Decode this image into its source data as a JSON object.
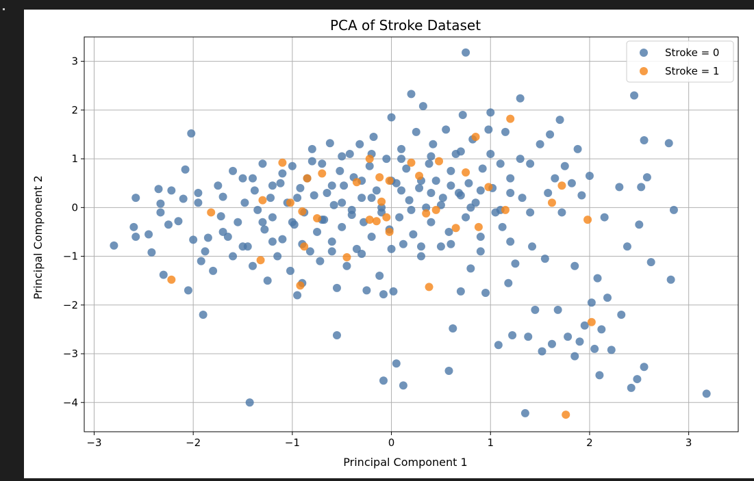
{
  "chart_data": {
    "type": "scatter",
    "title": "PCA of Stroke Dataset",
    "xlabel": "Principal Component 1",
    "ylabel": "Principal Component 2",
    "xlim": [
      -3.1,
      3.5
    ],
    "ylim": [
      -4.6,
      3.5
    ],
    "xticks": [
      -3,
      -2,
      -1,
      0,
      1,
      2,
      3
    ],
    "yticks": [
      3,
      2,
      1,
      0,
      -1,
      -2,
      -3,
      -4
    ],
    "xtick_labels": [
      "−3",
      "−2",
      "−1",
      "0",
      "1",
      "2",
      "3"
    ],
    "ytick_labels": [
      "3",
      "2",
      "1",
      "0",
      "−1",
      "−2",
      "−3",
      "−4"
    ],
    "grid": true,
    "legend": "top-right",
    "series": [
      {
        "name": "Stroke = 0",
        "color": "#4c78a8",
        "points": [
          [
            -2.8,
            -0.78
          ],
          [
            -2.6,
            -0.4
          ],
          [
            -2.58,
            -0.6
          ],
          [
            -2.58,
            0.2
          ],
          [
            -2.45,
            -0.55
          ],
          [
            -2.42,
            -0.92
          ],
          [
            -2.35,
            0.38
          ],
          [
            -2.33,
            -0.1
          ],
          [
            -2.33,
            0.08
          ],
          [
            -2.3,
            -1.38
          ],
          [
            -2.22,
            0.35
          ],
          [
            -2.25,
            -0.35
          ],
          [
            -2.15,
            -0.28
          ],
          [
            -2.1,
            0.18
          ],
          [
            -2.02,
            1.52
          ],
          [
            -2.08,
            0.78
          ],
          [
            -2.05,
            -1.7
          ],
          [
            -2.0,
            -0.66
          ],
          [
            -1.95,
            0.1
          ],
          [
            -1.92,
            -1.1
          ],
          [
            -1.9,
            -2.2
          ],
          [
            -1.88,
            -0.9
          ],
          [
            -1.85,
            -0.62
          ],
          [
            -1.8,
            -1.3
          ],
          [
            -1.75,
            0.45
          ],
          [
            -1.72,
            -0.18
          ],
          [
            -1.7,
            0.22
          ],
          [
            -1.65,
            -0.6
          ],
          [
            -1.6,
            -1.0
          ],
          [
            -1.55,
            -0.3
          ],
          [
            -1.5,
            0.6
          ],
          [
            -1.48,
            0.1
          ],
          [
            -1.45,
            -0.8
          ],
          [
            -1.4,
            -1.2
          ],
          [
            -1.38,
            0.35
          ],
          [
            -1.35,
            -0.05
          ],
          [
            -1.3,
            0.9
          ],
          [
            -1.28,
            -0.45
          ],
          [
            -1.25,
            -1.5
          ],
          [
            -1.22,
            0.2
          ],
          [
            -1.2,
            -0.2
          ],
          [
            -1.15,
            -1.0
          ],
          [
            -1.12,
            0.5
          ],
          [
            -1.1,
            -0.65
          ],
          [
            -1.05,
            0.1
          ],
          [
            -1.02,
            -1.3
          ],
          [
            -1.0,
            0.85
          ],
          [
            -0.98,
            -0.35
          ],
          [
            -0.95,
            -1.8
          ],
          [
            -0.92,
            0.4
          ],
          [
            -0.9,
            -1.55
          ],
          [
            -0.88,
            -0.1
          ],
          [
            -0.85,
            0.6
          ],
          [
            -0.82,
            -0.9
          ],
          [
            -0.8,
            1.2
          ],
          [
            -0.78,
            0.25
          ],
          [
            -0.75,
            -0.5
          ],
          [
            -0.72,
            -1.1
          ],
          [
            -0.7,
            0.9
          ],
          [
            -0.68,
            -0.25
          ],
          [
            -0.65,
            0.3
          ],
          [
            -0.62,
            1.32
          ],
          [
            -0.6,
            -0.7
          ],
          [
            -0.58,
            0.05
          ],
          [
            -0.55,
            -1.65
          ],
          [
            -0.55,
            -2.62
          ],
          [
            -0.52,
            0.75
          ],
          [
            -0.5,
            -0.4
          ],
          [
            -0.48,
            0.45
          ],
          [
            -0.45,
            -1.2
          ],
          [
            -0.42,
            1.1
          ],
          [
            -0.4,
            -0.05
          ],
          [
            -0.38,
            0.62
          ],
          [
            -0.35,
            -0.85
          ],
          [
            -0.32,
            1.3
          ],
          [
            -0.3,
            0.2
          ],
          [
            -0.28,
            -0.3
          ],
          [
            -0.25,
            -1.7
          ],
          [
            -0.22,
            0.85
          ],
          [
            -0.2,
            -0.6
          ],
          [
            -0.18,
            1.45
          ],
          [
            -0.15,
            0.35
          ],
          [
            -0.12,
            -1.4
          ],
          [
            -0.1,
            0.0
          ],
          [
            -0.08,
            -3.55
          ],
          [
            -0.08,
            -1.78
          ],
          [
            -0.05,
            1.0
          ],
          [
            -0.02,
            -0.45
          ],
          [
            0.0,
            1.85
          ],
          [
            0.02,
            -1.72
          ],
          [
            0.05,
            0.5
          ],
          [
            0.05,
            -3.2
          ],
          [
            0.08,
            -0.2
          ],
          [
            0.1,
            1.2
          ],
          [
            0.12,
            -0.75
          ],
          [
            0.12,
            -3.65
          ],
          [
            0.15,
            0.8
          ],
          [
            0.18,
            0.15
          ],
          [
            0.2,
            2.33
          ],
          [
            0.22,
            -0.55
          ],
          [
            0.25,
            1.55
          ],
          [
            0.28,
            0.4
          ],
          [
            0.3,
            -1.0
          ],
          [
            0.32,
            2.08
          ],
          [
            0.35,
            0.0
          ],
          [
            0.38,
            0.9
          ],
          [
            0.4,
            -0.3
          ],
          [
            0.42,
            1.3
          ],
          [
            0.45,
            0.55
          ],
          [
            0.5,
            -0.8
          ],
          [
            0.52,
            0.2
          ],
          [
            0.55,
            1.6
          ],
          [
            0.58,
            -0.5
          ],
          [
            0.6,
            0.75
          ],
          [
            0.62,
            -2.48
          ],
          [
            0.58,
            -3.35
          ],
          [
            0.65,
            1.1
          ],
          [
            0.68,
            0.3
          ],
          [
            0.7,
            -1.72
          ],
          [
            0.72,
            1.9
          ],
          [
            0.75,
            3.18
          ],
          [
            0.75,
            -0.2
          ],
          [
            0.78,
            0.5
          ],
          [
            0.8,
            -1.25
          ],
          [
            0.82,
            1.4
          ],
          [
            0.85,
            0.1
          ],
          [
            0.9,
            -0.6
          ],
          [
            0.92,
            0.8
          ],
          [
            0.95,
            -1.75
          ],
          [
            0.98,
            1.6
          ],
          [
            1.0,
            1.95
          ],
          [
            1.02,
            0.4
          ],
          [
            1.05,
            -0.1
          ],
          [
            1.08,
            -2.82
          ],
          [
            1.1,
            0.9
          ],
          [
            1.12,
            -0.4
          ],
          [
            1.15,
            1.55
          ],
          [
            1.18,
            -1.55
          ],
          [
            1.2,
            0.6
          ],
          [
            1.22,
            -2.62
          ],
          [
            1.25,
            -1.15
          ],
          [
            1.3,
            2.24
          ],
          [
            1.32,
            0.2
          ],
          [
            1.35,
            -4.22
          ],
          [
            1.38,
            -2.65
          ],
          [
            1.4,
            0.9
          ],
          [
            1.42,
            -0.8
          ],
          [
            1.45,
            -2.1
          ],
          [
            1.5,
            1.3
          ],
          [
            1.52,
            -2.95
          ],
          [
            1.55,
            -1.05
          ],
          [
            1.58,
            0.3
          ],
          [
            1.6,
            1.5
          ],
          [
            1.62,
            -2.8
          ],
          [
            1.65,
            0.6
          ],
          [
            1.68,
            -2.1
          ],
          [
            1.7,
            1.8
          ],
          [
            1.72,
            -0.1
          ],
          [
            1.75,
            0.85
          ],
          [
            1.78,
            -2.65
          ],
          [
            1.82,
            0.5
          ],
          [
            1.85,
            -1.2
          ],
          [
            1.85,
            -3.05
          ],
          [
            1.88,
            1.2
          ],
          [
            1.9,
            -2.75
          ],
          [
            1.92,
            0.25
          ],
          [
            1.95,
            -2.42
          ],
          [
            2.0,
            0.65
          ],
          [
            2.02,
            -1.95
          ],
          [
            2.05,
            -2.9
          ],
          [
            2.08,
            -1.45
          ],
          [
            2.1,
            -3.44
          ],
          [
            2.12,
            -2.5
          ],
          [
            2.15,
            -0.2
          ],
          [
            2.18,
            -1.85
          ],
          [
            2.22,
            -2.92
          ],
          [
            2.3,
            0.42
          ],
          [
            2.32,
            -2.2
          ],
          [
            2.38,
            -0.8
          ],
          [
            2.42,
            -3.7
          ],
          [
            2.45,
            2.3
          ],
          [
            2.48,
            -3.52
          ],
          [
            2.5,
            -0.35
          ],
          [
            2.52,
            0.42
          ],
          [
            2.55,
            1.38
          ],
          [
            2.55,
            -3.27
          ],
          [
            2.58,
            0.62
          ],
          [
            2.62,
            -1.12
          ],
          [
            2.8,
            1.32
          ],
          [
            2.82,
            -1.48
          ],
          [
            2.85,
            -0.05
          ],
          [
            3.18,
            -3.82
          ],
          [
            -1.43,
            -4.0
          ],
          [
            -1.95,
            0.3
          ],
          [
            -1.6,
            0.75
          ],
          [
            -1.4,
            0.6
          ],
          [
            -1.2,
            0.45
          ],
          [
            -0.95,
            0.2
          ],
          [
            -0.6,
            0.45
          ],
          [
            -0.3,
            0.55
          ],
          [
            0.0,
            0.55
          ],
          [
            0.3,
            0.55
          ],
          [
            0.6,
            0.45
          ],
          [
            0.9,
            0.35
          ],
          [
            1.2,
            0.3
          ],
          [
            -1.3,
            -0.3
          ],
          [
            -1.0,
            -0.3
          ],
          [
            -0.7,
            -0.25
          ],
          [
            -0.4,
            -0.15
          ],
          [
            -0.1,
            -0.1
          ],
          [
            0.2,
            -0.05
          ],
          [
            0.5,
            0.05
          ],
          [
            0.8,
            0.0
          ],
          [
            1.1,
            -0.05
          ],
          [
            1.4,
            -0.1
          ],
          [
            -0.5,
            0.1
          ],
          [
            -0.2,
            0.2
          ],
          [
            0.1,
            0.35
          ],
          [
            0.4,
            0.3
          ],
          [
            0.7,
            0.25
          ],
          [
            -1.1,
            0.7
          ],
          [
            -0.8,
            0.95
          ],
          [
            -0.5,
            1.05
          ],
          [
            -0.2,
            1.1
          ],
          [
            0.1,
            1.0
          ],
          [
            0.4,
            1.05
          ],
          [
            0.7,
            1.15
          ],
          [
            1.0,
            1.1
          ],
          [
            1.3,
            1.0
          ],
          [
            -1.7,
            -0.5
          ],
          [
            -1.5,
            -0.8
          ],
          [
            -1.2,
            -0.7
          ],
          [
            -0.9,
            -0.75
          ],
          [
            -0.6,
            -0.9
          ],
          [
            -0.3,
            -0.95
          ],
          [
            0.0,
            -0.85
          ],
          [
            0.3,
            -0.8
          ],
          [
            0.6,
            -0.75
          ],
          [
            0.9,
            -0.9
          ],
          [
            1.2,
            -0.7
          ]
        ]
      },
      {
        "name": "Stroke = 1",
        "color": "#f58518",
        "points": [
          [
            -2.22,
            -1.48
          ],
          [
            -1.82,
            -0.1
          ],
          [
            -1.3,
            0.15
          ],
          [
            -1.32,
            -1.08
          ],
          [
            -1.1,
            0.92
          ],
          [
            -1.02,
            0.1
          ],
          [
            -0.92,
            -1.6
          ],
          [
            -0.9,
            -0.08
          ],
          [
            -0.88,
            -0.8
          ],
          [
            -0.85,
            0.6
          ],
          [
            -0.75,
            -0.22
          ],
          [
            -0.7,
            0.7
          ],
          [
            -0.45,
            -1.02
          ],
          [
            -0.35,
            0.52
          ],
          [
            -0.22,
            1.0
          ],
          [
            -0.22,
            -0.25
          ],
          [
            -0.15,
            -0.28
          ],
          [
            -0.12,
            0.62
          ],
          [
            -0.1,
            0.12
          ],
          [
            -0.05,
            -0.2
          ],
          [
            -0.02,
            0.55
          ],
          [
            -0.02,
            -0.5
          ],
          [
            0.2,
            0.92
          ],
          [
            0.28,
            0.65
          ],
          [
            0.35,
            -0.12
          ],
          [
            0.38,
            -1.63
          ],
          [
            0.45,
            -0.05
          ],
          [
            0.48,
            0.95
          ],
          [
            0.65,
            -0.42
          ],
          [
            0.75,
            0.72
          ],
          [
            0.85,
            1.45
          ],
          [
            0.88,
            -0.4
          ],
          [
            0.98,
            0.42
          ],
          [
            1.15,
            -0.05
          ],
          [
            1.2,
            1.82
          ],
          [
            1.62,
            0.1
          ],
          [
            1.72,
            0.45
          ],
          [
            1.98,
            -0.25
          ],
          [
            2.02,
            -2.35
          ],
          [
            1.76,
            -4.25
          ]
        ]
      }
    ]
  }
}
